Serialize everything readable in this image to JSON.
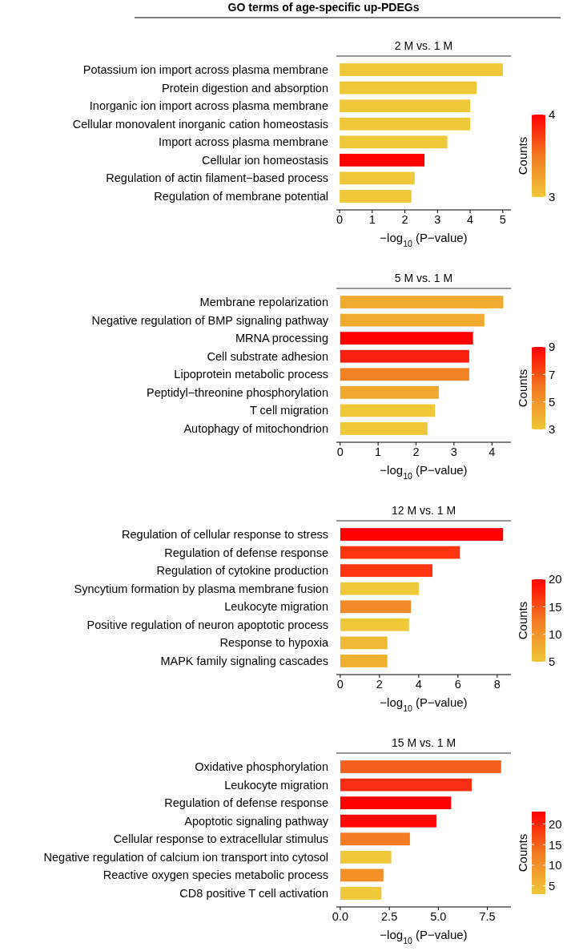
{
  "chart_data": [
    {
      "type": "bar",
      "orientation": "horizontal",
      "title": "2 M vs. 1 M",
      "annotations": [
        "GO terms of age-specific up-PDEGs"
      ],
      "xlabel": "−log$_{10}$ (P−value)",
      "clabel": "Counts",
      "categories": [
        "Potassium ion import across plasma membrane",
        "Protein digestion and absorption",
        "Inorganic ion import across plasma membrane",
        "Cellular monovalent inorganic cation homeostasis",
        "Import across plasma membrane",
        "Cellular ion homeostasis",
        "Regulation of actin filament−based process",
        "Regulation of membrane potential"
      ],
      "values": [
        5.0,
        4.2,
        4.0,
        4.0,
        3.3,
        2.6,
        2.3,
        2.2
      ],
      "colors": [
        "#efc83a",
        "#efc83a",
        "#efc83a",
        "#efc83a",
        "#efc83a",
        "#ff0000",
        "#efc83a",
        "#efc83a"
      ],
      "xlim": [
        -0.1,
        5.25
      ],
      "xticks": [
        0,
        1,
        2,
        3,
        4,
        5
      ],
      "clim": [
        3,
        4
      ],
      "cticks": [
        3,
        4
      ]
    },
    {
      "type": "bar",
      "orientation": "horizontal",
      "title": "5 M vs. 1 M",
      "xlabel": "−log$_{10}$ (P−value)",
      "clabel": "Counts",
      "categories": [
        "Membrane repolarization",
        "Negative regulation of BMP signaling pathway",
        "MRNA processing",
        "Cell substrate adhesion",
        "Lipoprotein metabolic process",
        "Peptidyl−threonine phosphorylation",
        "T cell migration",
        "Autophagy of mitochondrion"
      ],
      "values": [
        4.3,
        3.8,
        3.5,
        3.4,
        3.4,
        2.6,
        2.5,
        2.3
      ],
      "colors": [
        "#f0aa30",
        "#f0aa30",
        "#ff0000",
        "#fc2010",
        "#f28324",
        "#f0a830",
        "#efc83a",
        "#efc83a"
      ],
      "xlim": [
        -0.1,
        4.5
      ],
      "xticks": [
        0,
        1,
        2,
        3,
        4
      ],
      "clim": [
        3,
        9
      ],
      "cticks": [
        3,
        5,
        7,
        9
      ]
    },
    {
      "type": "bar",
      "orientation": "horizontal",
      "title": "12 M vs. 1 M",
      "xlabel": "−log$_{10}$ (P−value)",
      "clabel": "Counts",
      "categories": [
        "Regulation of cellular response to stress",
        "Regulation of defense response",
        "Regulation of cytokine production",
        "Syncytium formation by plasma membrane fusion",
        "Leukocyte migration",
        "Positive regulation of neuron apoptotic process",
        "Response to hypoxia",
        "MAPK family signaling cascades"
      ],
      "values": [
        8.3,
        6.1,
        4.7,
        4.0,
        3.6,
        3.5,
        2.4,
        2.4
      ],
      "colors": [
        "#ff0000",
        "#fc3510",
        "#fc3510",
        "#efc83a",
        "#f28a2a",
        "#efc83a",
        "#eeba35",
        "#efb030"
      ],
      "xlim": [
        -0.2,
        8.7
      ],
      "xticks": [
        0,
        2,
        4,
        6,
        8
      ],
      "clim": [
        5,
        20
      ],
      "cticks": [
        5,
        10,
        15,
        20
      ]
    },
    {
      "type": "bar",
      "orientation": "horizontal",
      "title": "15 M vs. 1 M",
      "xlabel": "−log$_{10}$ (P−value)",
      "clabel": "Counts",
      "categories": [
        "Oxidative phosphorylation",
        "Leukocyte migration",
        "Regulation of defense response",
        "Apoptotic signaling pathway",
        "Cellular response to extracellular stimulus",
        "Negative regulation of calcium ion transport into cytosol",
        "Reactive oxygen species metabolic process",
        "CD8 positive T cell activation"
      ],
      "values": [
        8.2,
        6.7,
        5.65,
        4.9,
        3.55,
        2.6,
        2.2,
        2.1
      ],
      "colors": [
        "#f4601e",
        "#fa2e12",
        "#ff0000",
        "#fe0806",
        "#f47a24",
        "#efc83a",
        "#f49028",
        "#efc83a"
      ],
      "xlim": [
        -0.2,
        8.7
      ],
      "xticks": [
        {
          "value": 0,
          "label": "0.0"
        },
        {
          "value": 2.5,
          "label": "2.5"
        },
        {
          "value": 5,
          "label": "5.0"
        },
        {
          "value": 7.5,
          "label": "7.5"
        }
      ],
      "clim": [
        3,
        23
      ],
      "cticks": [
        5,
        10,
        15,
        20
      ]
    }
  ]
}
